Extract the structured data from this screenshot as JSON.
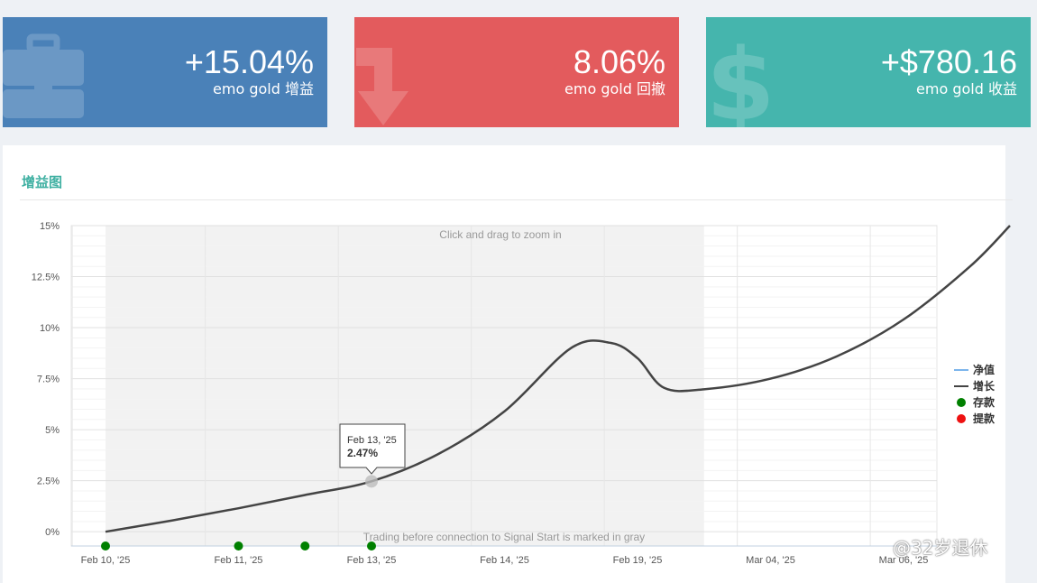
{
  "cards": [
    {
      "value": "+15.04%",
      "label": "emo gold 增益",
      "color": "#4a81b8",
      "icon": "briefcase-icon"
    },
    {
      "value": "8.06%",
      "label": "emo gold 回撤",
      "color": "#e35b5d",
      "icon": "arrow-down-turn-icon"
    },
    {
      "value": "+$780.16",
      "label": "emo gold 收益",
      "color": "#45b5ad",
      "icon": "dollar-icon"
    }
  ],
  "panel": {
    "title": "增益图"
  },
  "chart_data": {
    "type": "line",
    "ytick_labels": [
      "0%",
      "2.5%",
      "5%",
      "7.5%",
      "10%",
      "12.5%",
      "15%"
    ],
    "ylim": [
      -0.7,
      15
    ],
    "x_categories": [
      "Feb 10, '25",
      "Feb 11, '25",
      "Feb 13, '25",
      "Feb 14, '25",
      "Feb 19, '25",
      "Mar 04, '25",
      "Mar 06, '25"
    ],
    "zoom_hint": "Click and drag to zoom in",
    "gray_note": "Trading before connection to Signal Start is marked in gray",
    "gray_band": [
      0,
      4.5
    ],
    "series": [
      {
        "name": "增长",
        "color": "#444444",
        "x": [
          0,
          0.5,
          1,
          1.5,
          2,
          2.5,
          3,
          3.5,
          3.8,
          4.0,
          4.2,
          4.5,
          5.0,
          5.5,
          6.0,
          6.5,
          6.8
        ],
        "y": [
          0,
          0.55,
          1.15,
          1.8,
          2.47,
          3.8,
          5.9,
          9.0,
          9.25,
          8.5,
          7.05,
          6.98,
          7.5,
          8.6,
          10.4,
          13.0,
          15.0
        ]
      },
      {
        "name": "净值",
        "color": "#7cb5ec",
        "x": [],
        "y": []
      }
    ],
    "deposits": {
      "name": "存款",
      "color": "#008000",
      "x": [
        0,
        1,
        1.5,
        2
      ]
    },
    "withdrawals": {
      "name": "提款",
      "color": "#ee1111",
      "x": []
    },
    "tooltip": {
      "date": "Feb 13, '25",
      "value": "2.47%",
      "x": 2,
      "y": 2.47
    },
    "legend": [
      "净值",
      "增长",
      "存款",
      "提款"
    ]
  },
  "watermark": "@32岁退休"
}
